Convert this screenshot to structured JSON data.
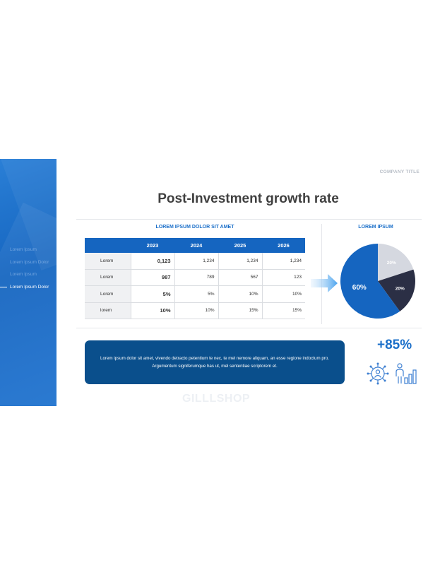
{
  "company_title": "COMPANY TITLE",
  "page_title": "Post-Investment growth rate",
  "sidebar": {
    "items": [
      {
        "label": "Lorem Ipsum",
        "active": false
      },
      {
        "label": "Lorem Ipsum Dolor",
        "active": false
      },
      {
        "label": "Lorem Ipsum",
        "active": false
      },
      {
        "label": "Lorem Ipsum Dolor",
        "active": true
      }
    ]
  },
  "table_section": {
    "title": "LOREM IPSUM DOLOR SIT AMET",
    "headers": [
      "",
      "2023",
      "2024",
      "2025",
      "2026"
    ],
    "rows": [
      [
        "Lorem",
        "0,123",
        "1,234",
        "1,234",
        "1,234"
      ],
      [
        "Lorem",
        "987",
        "789",
        "567",
        "123"
      ],
      [
        "Lorem",
        "5%",
        "5%",
        "10%",
        "10%"
      ],
      [
        "lorem",
        "10%",
        "10%",
        "15%",
        "15%"
      ]
    ]
  },
  "pie_section": {
    "title": "LOREM IPSUM"
  },
  "chart_data": {
    "type": "pie",
    "title": "",
    "slices": [
      {
        "label": "60%",
        "value": 60,
        "color": "#1565c0"
      },
      {
        "label": "20%",
        "value": 20,
        "color": "#2b2f45"
      },
      {
        "label": "20%",
        "value": 20,
        "color": "#d5d8e0"
      }
    ]
  },
  "callout": {
    "text": "Lorem ipsum dolor sit amet, vivendo detracto petentium te nec, te mel nemore aliquam, an esse regione indoctum pro. Argumentum signiferumque has ut, mel sententiae scriptorem et."
  },
  "stat": {
    "value": "+85%"
  },
  "icons": {
    "left": "user-network-icon",
    "right": "person-growth-chart-icon"
  },
  "watermark": "GILLLSHOP",
  "colors": {
    "accent": "#1565c0",
    "dark": "#2b2f45",
    "light": "#d5d8e0",
    "callout_bg": "#0a4f8c"
  }
}
